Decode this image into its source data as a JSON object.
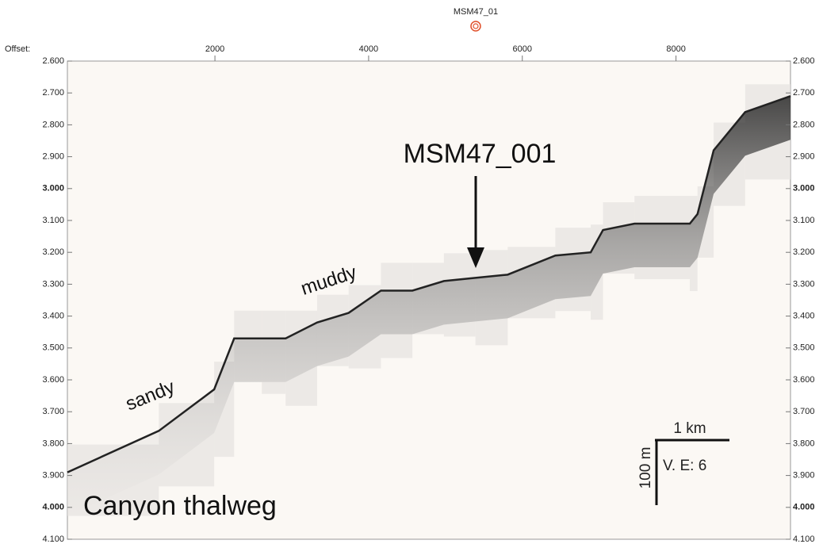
{
  "chart_data": {
    "type": "profile",
    "header": "MSM47_01",
    "xlabel": "Offset:",
    "x": [
      80,
      1270,
      1990,
      2250,
      2610,
      2920,
      3330,
      3740,
      4160,
      4570,
      4980,
      5390,
      5810,
      6430,
      6890,
      7050,
      7460,
      8180,
      8280,
      8490,
      8900,
      9490
    ],
    "values": [
      3.89,
      3.76,
      3.63,
      3.47,
      3.47,
      3.47,
      3.42,
      3.39,
      3.32,
      3.32,
      3.29,
      3.28,
      3.27,
      3.21,
      3.2,
      3.13,
      3.11,
      3.11,
      3.08,
      2.88,
      2.76,
      2.71
    ],
    "color": "#222222",
    "xlim": [
      80,
      9490
    ],
    "xticks": [
      2000,
      4000,
      6000,
      8000
    ],
    "ylim": [
      2.6,
      4.1
    ],
    "yticks": [
      {
        "value": 2.6,
        "label": "2.600"
      },
      {
        "value": 2.7,
        "label": "2.700"
      },
      {
        "value": 2.8,
        "label": "2.800"
      },
      {
        "value": 2.9,
        "label": "2.900"
      },
      {
        "value": 3,
        "label": "3.000"
      },
      {
        "value": 3.1,
        "label": "3.100"
      },
      {
        "value": 3.2,
        "label": "3.200"
      },
      {
        "value": 3.3,
        "label": "3.300"
      },
      {
        "value": 3.4,
        "label": "3.400"
      },
      {
        "value": 3.5,
        "label": "3.500"
      },
      {
        "value": 3.6,
        "label": "3.600"
      },
      {
        "value": 3.7,
        "label": "3.700"
      },
      {
        "value": 3.8,
        "label": "3.800"
      },
      {
        "value": 3.9,
        "label": "3.900"
      },
      {
        "value": 4,
        "label": "4.000"
      },
      {
        "value": 4.1,
        "label": "4.100"
      }
    ],
    "annotations": {
      "site": "MSM47_001",
      "muddy": "muddy",
      "sandy": "sandy",
      "thalweg": "Canyon thalweg",
      "scale_h": "1 km",
      "scale_v": "100 m",
      "ve": "V. E: 6"
    }
  }
}
